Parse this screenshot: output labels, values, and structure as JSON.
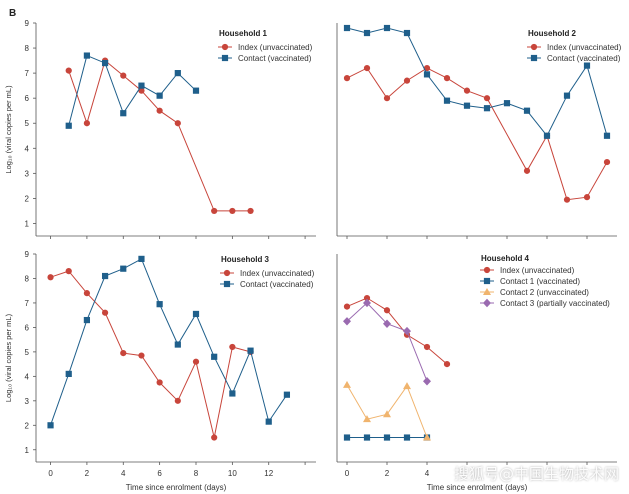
{
  "figure": {
    "panel_letter": "B"
  },
  "colors": {
    "index": "#c8453b",
    "contact": "#1f5f8b",
    "contact2": "#f0b46e",
    "contact3": "#9a6ab0"
  },
  "watermark": {
    "text": "搜狐号@中国生物技术网"
  },
  "chart_data": [
    {
      "type": "line",
      "title": "Household 1",
      "xlabel": "",
      "ylabel": "Log₁₀ (viral copies per mL)",
      "xlim": [
        -0.8,
        14.6
      ],
      "ylim": [
        0.5,
        9
      ],
      "xticks": [],
      "yticks": [
        1,
        2,
        3,
        4,
        5,
        6,
        7,
        8,
        9
      ],
      "legend": "top-right",
      "series": [
        {
          "name": "Index (unvaccinated)",
          "marker": "circle",
          "color": "#c8453b",
          "x": [
            1,
            2,
            3,
            4,
            5,
            6,
            7,
            9,
            10,
            11
          ],
          "y": [
            7.1,
            5.0,
            7.5,
            6.9,
            6.3,
            5.5,
            5.0,
            1.5,
            1.5,
            1.5
          ]
        },
        {
          "name": "Contact (vaccinated)",
          "marker": "square",
          "color": "#1f5f8b",
          "x": [
            1,
            2,
            3,
            4,
            5,
            6,
            7,
            8
          ],
          "y": [
            4.9,
            7.7,
            7.4,
            5.4,
            6.5,
            6.1,
            7.0,
            6.3
          ]
        }
      ]
    },
    {
      "type": "line",
      "title": "Household 2",
      "xlabel": "",
      "ylabel": "",
      "xlim": [
        -0.5,
        13.5
      ],
      "ylim": [
        0.5,
        9
      ],
      "xticks": [],
      "yticks": [],
      "legend": "top-right",
      "series": [
        {
          "name": "Index (unvaccinated)",
          "marker": "circle",
          "color": "#c8453b",
          "x": [
            0,
            1,
            2,
            3,
            4,
            5,
            6,
            7,
            9,
            10,
            11,
            12,
            13
          ],
          "y": [
            6.8,
            7.2,
            6.0,
            6.7,
            7.2,
            6.8,
            6.3,
            6.0,
            3.1,
            4.5,
            1.95,
            2.05,
            3.45
          ]
        },
        {
          "name": "Contact (vaccinated)",
          "marker": "square",
          "color": "#1f5f8b",
          "x": [
            0,
            1,
            2,
            3,
            4,
            5,
            6,
            7,
            8,
            9,
            10,
            11,
            12,
            13
          ],
          "y": [
            8.8,
            8.6,
            8.8,
            8.6,
            6.95,
            5.9,
            5.7,
            5.6,
            5.8,
            5.5,
            4.5,
            6.1,
            7.3,
            4.5
          ]
        }
      ]
    },
    {
      "type": "line",
      "title": "Household 3",
      "xlabel": "Time since enrolment (days)",
      "ylabel": "Log₁₀ (viral copies per mL)",
      "xlim": [
        -0.8,
        14.6
      ],
      "ylim": [
        0.5,
        9
      ],
      "xticks": [
        0,
        2,
        4,
        6,
        8,
        10,
        12
      ],
      "yticks": [
        1,
        2,
        3,
        4,
        5,
        6,
        7,
        8,
        9
      ],
      "legend": "top-right",
      "series": [
        {
          "name": "Index (unvaccinated)",
          "marker": "circle",
          "color": "#c8453b",
          "x": [
            0,
            1,
            2,
            3,
            4,
            5,
            6,
            7,
            8,
            9,
            10,
            11
          ],
          "y": [
            8.05,
            8.3,
            7.4,
            6.6,
            4.95,
            4.85,
            3.75,
            3.0,
            4.6,
            1.5,
            5.2,
            5.0
          ]
        },
        {
          "name": "Contact (vaccinated)",
          "marker": "square",
          "color": "#1f5f8b",
          "x": [
            0,
            1,
            2,
            3,
            4,
            5,
            6,
            7,
            8,
            9,
            10,
            11,
            12,
            13
          ],
          "y": [
            2.0,
            4.1,
            6.3,
            8.1,
            8.4,
            8.8,
            6.95,
            5.3,
            6.55,
            4.8,
            3.3,
            5.05,
            2.15,
            3.25
          ]
        }
      ]
    },
    {
      "type": "line",
      "title": "Household 4",
      "xlabel": "Time since enrolment (days)",
      "ylabel": "",
      "xlim": [
        -0.5,
        13.5
      ],
      "ylim": [
        0.5,
        9
      ],
      "xticks": [
        0,
        2,
        4
      ],
      "yticks": [],
      "legend": "top-right",
      "series": [
        {
          "name": "Index (unvaccinated)",
          "marker": "circle",
          "color": "#c8453b",
          "x": [
            0,
            1,
            2,
            3,
            4,
            5
          ],
          "y": [
            6.85,
            7.2,
            6.7,
            5.7,
            5.2,
            4.5
          ]
        },
        {
          "name": "Contact 1 (vaccinated)",
          "marker": "square",
          "color": "#1f5f8b",
          "x": [
            0,
            1,
            2,
            3,
            4
          ],
          "y": [
            1.5,
            1.5,
            1.5,
            1.5,
            1.5
          ]
        },
        {
          "name": "Contact 2 (unvaccinated)",
          "marker": "triangle",
          "color": "#f0b46e",
          "x": [
            0,
            1,
            2,
            3,
            4
          ],
          "y": [
            3.65,
            2.25,
            2.45,
            3.6,
            1.5
          ]
        },
        {
          "name": "Contact 3 (partially vaccinated)",
          "marker": "diamond",
          "color": "#9a6ab0",
          "x": [
            0,
            1,
            2,
            3,
            4
          ],
          "y": [
            6.25,
            7.0,
            6.15,
            5.85,
            3.8
          ]
        }
      ]
    }
  ]
}
